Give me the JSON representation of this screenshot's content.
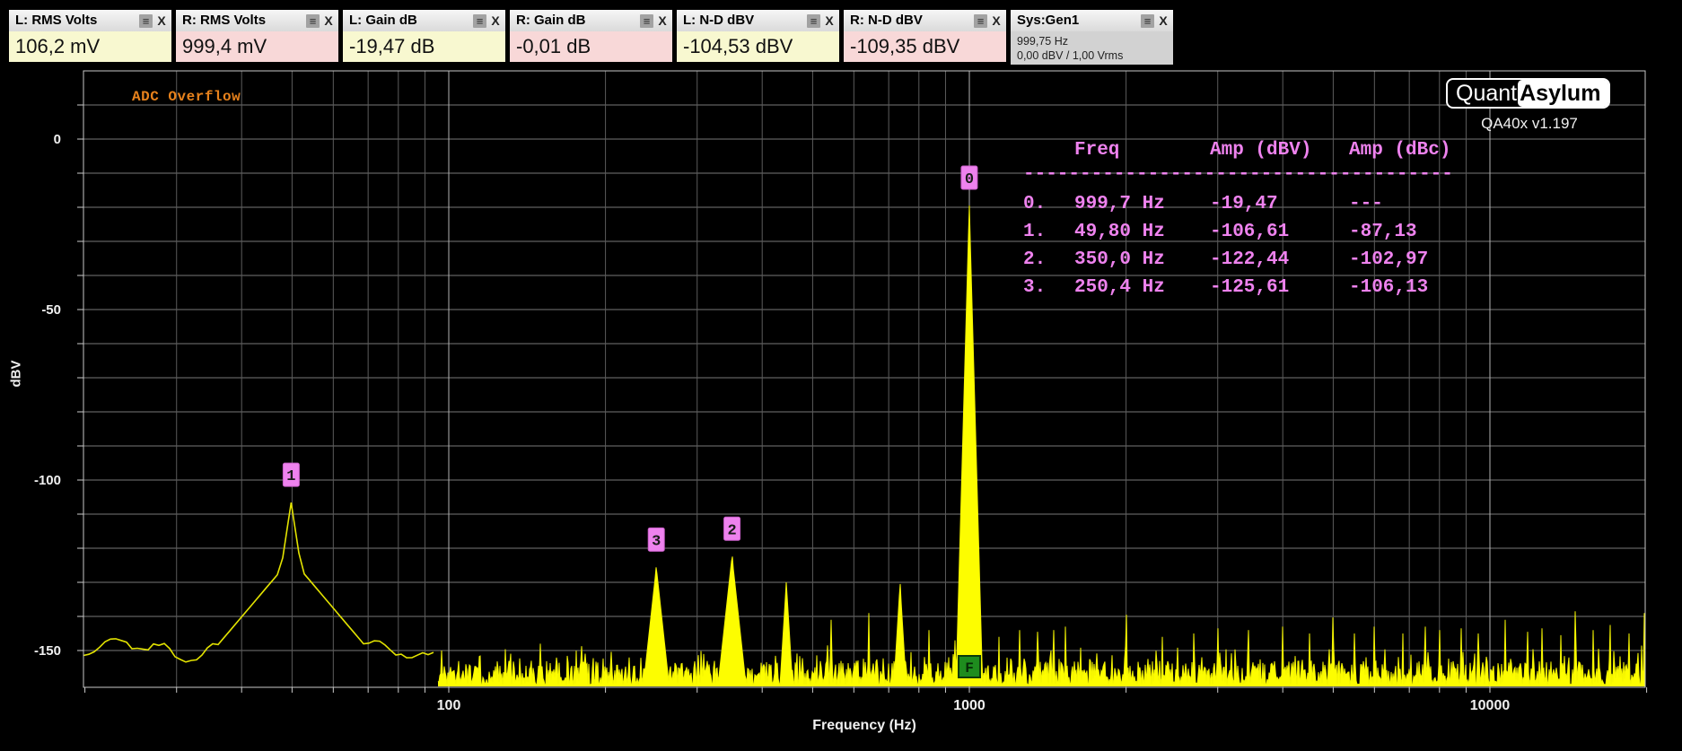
{
  "meters": [
    {
      "title": "L: RMS Volts",
      "value": "106,2 mV",
      "channel": "left"
    },
    {
      "title": "R: RMS Volts",
      "value": "999,4 mV",
      "channel": "right"
    },
    {
      "title": "L: Gain dB",
      "value": "-19,47 dB",
      "channel": "left"
    },
    {
      "title": "R: Gain dB",
      "value": "-0,01 dB",
      "channel": "right"
    },
    {
      "title": "L: N-D dBV",
      "value": "-104,53 dBV",
      "channel": "left"
    },
    {
      "title": "R: N-D dBV",
      "value": "-109,35 dBV",
      "channel": "right"
    }
  ],
  "generator": {
    "title": "Sys:Gen1",
    "line1": "999,75 Hz",
    "line2": "0,00 dBV  / 1,00 Vrms"
  },
  "icons": {
    "menu": "≡",
    "close": "X"
  },
  "branding": {
    "logo_left": "Quant",
    "logo_right": "Asylum",
    "version": "QA40x v1.197"
  },
  "overlay": {
    "adc_overflow": "ADC Overflow"
  },
  "results_table": {
    "headers": [
      "Freq",
      "Amp (dBV)",
      "Amp (dBc)"
    ],
    "divider": "--------------------------------------",
    "rows": [
      {
        "index": "0.",
        "freq": "999,7 Hz",
        "amp_dbv": "-19,47",
        "amp_dbc": "---"
      },
      {
        "index": "1.",
        "freq": "49,80 Hz",
        "amp_dbv": "-106,61",
        "amp_dbc": "-87,13"
      },
      {
        "index": "2.",
        "freq": "350,0 Hz",
        "amp_dbv": "-122,44",
        "amp_dbc": "-102,97"
      },
      {
        "index": "3.",
        "freq": "250,4 Hz",
        "amp_dbv": "-125,61",
        "amp_dbc": "-106,13"
      }
    ]
  },
  "colors": {
    "trace": "#e3e300",
    "trace_bright": "#f5f500",
    "trace_fill": "#fdfd00",
    "grid_minor": "#5c5c5c",
    "grid_decade": "#b2b2b2",
    "grid_horizontal": "#787878",
    "spine": "#c8c8c8",
    "tick": "#cccccc",
    "axis_text": "#f0f0f0",
    "marker_bg": "#ee82ee",
    "marker_border": "#c95fc9",
    "marker_text": "#1a1a1a",
    "fundamental_bg": "#1e8c1e",
    "fundamental_border": "#0a3a0a",
    "fundamental_text": "#062806",
    "table_text": "#ee82ee",
    "adc_overflow": "#e8821c"
  },
  "chart_data": {
    "type": "line",
    "title": "",
    "xlabel": "Frequency (Hz)",
    "ylabel": "dBV",
    "x_scale": "log",
    "xlim": [
      20,
      20000
    ],
    "ylim": [
      -160,
      20
    ],
    "x_tick_labels": [
      100,
      1000,
      10000
    ],
    "y_tick_labels": [
      0,
      -50,
      -100,
      -150
    ],
    "grid_step_db": 10,
    "legend": "none",
    "grid": "on",
    "markers": [
      {
        "label": "0",
        "freq_hz": 999.7,
        "amp_dbv": -19.47,
        "amp_dbc": null
      },
      {
        "label": "1",
        "freq_hz": 49.8,
        "amp_dbv": -106.61,
        "amp_dbc": -87.13
      },
      {
        "label": "2",
        "freq_hz": 350.0,
        "amp_dbv": -122.44,
        "amp_dbc": -102.97
      },
      {
        "label": "3",
        "freq_hz": 250.4,
        "amp_dbv": -125.61,
        "amp_dbc": -106.13
      }
    ],
    "fundamental_marker": {
      "label": "F",
      "freq_hz": 1000
    },
    "noise_floor_dbv": -155,
    "low_freq_trace_dbv": -149.5,
    "seed": 1337,
    "spurs": [
      [
        150,
        -148,
        9000
      ],
      [
        250.4,
        -125.61,
        1400
      ],
      [
        350,
        -122.44,
        1400
      ],
      [
        445,
        -130,
        2500
      ],
      [
        542,
        -141,
        9000
      ],
      [
        641,
        -139,
        9000
      ],
      [
        736,
        -130.5,
        2500
      ],
      [
        836,
        -144,
        9000
      ],
      [
        940,
        -147,
        9000
      ],
      [
        999.7,
        -19.47,
        5500
      ],
      [
        1040,
        -142,
        9000
      ],
      [
        1140,
        -146,
        9000
      ],
      [
        1250,
        -144,
        9000
      ],
      [
        1350,
        -144.5,
        9000
      ],
      [
        1450,
        -144,
        9000
      ],
      [
        1530,
        -143,
        9000
      ],
      [
        2000,
        -139.5,
        9000
      ],
      [
        2350,
        -146,
        9000
      ],
      [
        2700,
        -145,
        9000
      ],
      [
        3000,
        -143.5,
        9000
      ],
      [
        3440,
        -144,
        9000
      ],
      [
        4000,
        -143,
        9000
      ],
      [
        4500,
        -145,
        9000
      ],
      [
        5000,
        -140.3,
        9000
      ],
      [
        5500,
        -145,
        9000
      ],
      [
        6000,
        -143,
        9000
      ],
      [
        6800,
        -145,
        9000
      ],
      [
        7500,
        -143,
        9000
      ],
      [
        8000,
        -144,
        9000
      ],
      [
        8800,
        -143.5,
        9000
      ],
      [
        9500,
        -145,
        9000
      ],
      [
        10700,
        -141,
        9000
      ],
      [
        11800,
        -144.5,
        9000
      ],
      [
        12600,
        -143.5,
        9000
      ],
      [
        13700,
        -145.5,
        9000
      ],
      [
        14600,
        -138.5,
        9000
      ],
      [
        15800,
        -144,
        9000
      ],
      [
        17000,
        -142.5,
        9000
      ],
      [
        18500,
        -145,
        9000
      ],
      [
        19800,
        -139,
        9000
      ]
    ]
  }
}
